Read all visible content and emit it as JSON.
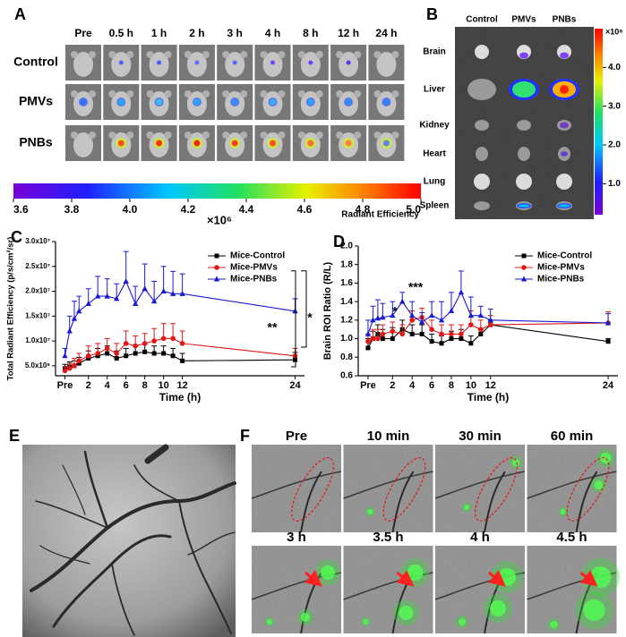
{
  "panel_a": {
    "label": "A",
    "columns": [
      "Pre",
      "0.5 h",
      "1 h",
      "2 h",
      "3 h",
      "4 h",
      "8 h",
      "12 h",
      "24 h"
    ],
    "rows": [
      "Control",
      "PMVs",
      "PNBs"
    ],
    "colorbar": {
      "lim": [
        3.6,
        5.0
      ],
      "ticks": [
        3.6,
        3.8,
        {
          "value": 4,
          "label": "4.0"
        },
        4.2,
        4.4,
        4.6,
        4.8,
        {
          "value": 5,
          "label": "5.0"
        }
      ],
      "multiplier": "×10⁶",
      "title": "Radiant Efficiency"
    }
  },
  "panel_b": {
    "label": "B",
    "columns": [
      "Control",
      "PMVs",
      "PNBs"
    ],
    "rows": [
      "Brain",
      "Liver",
      "Kidney",
      "Heart",
      "Lung",
      "Spleen"
    ],
    "colorbar": {
      "lim": [
        0.2,
        5.0
      ],
      "ticks": [
        {
          "value": 1,
          "label": "1.0"
        },
        {
          "value": 2,
          "label": "2.0"
        },
        {
          "value": 3,
          "label": "3.0"
        },
        {
          "value": 4,
          "label": "4.0"
        }
      ],
      "multiplier": "×10⁸"
    }
  },
  "chart_data": [
    {
      "type": "line",
      "panel_label": "C",
      "xlabel": "Time (h)",
      "ylabel": "Total Radiant Efficiency (p/s/cm²/sr)",
      "x": [
        -0.5,
        0,
        0.5,
        1,
        2,
        3,
        4,
        5,
        6,
        7,
        8,
        9,
        10,
        11,
        12,
        24
      ],
      "xlim": [
        -1.5,
        25
      ],
      "xticks": [
        {
          "value": -0.5,
          "label": "Pre"
        },
        2,
        4,
        6,
        8,
        10,
        12,
        24
      ],
      "ylim": [
        3000000,
        30000000
      ],
      "yticks": [
        {
          "value": 5000000,
          "label": "5.0x10⁶"
        },
        {
          "value": 10000000,
          "label": "1.0x10⁷"
        },
        {
          "value": 15000000,
          "label": "1.5x10⁷"
        },
        {
          "value": 20000000,
          "label": "2.0x10⁷"
        },
        {
          "value": 25000000,
          "label": "2.5x10⁷"
        },
        {
          "value": 30000000,
          "label": "3.0x10⁷"
        }
      ],
      "legend": "upper right",
      "series": [
        {
          "name": "Mice-Control",
          "color": "#000000",
          "marker": "square",
          "values": [
            4500000,
            4800000,
            5000000,
            5500000,
            6500000,
            7000000,
            7500000,
            6500000,
            7000000,
            7500000,
            7800000,
            7500000,
            7500000,
            7000000,
            6000000,
            6200000
          ],
          "errors": [
            800000,
            1000000,
            1000000,
            1200000,
            1500000,
            1500000,
            1500000,
            1500000,
            1500000,
            1500000,
            1500000,
            1500000,
            1500000,
            1500000,
            1500000,
            1500000
          ]
        },
        {
          "name": "Mice-PMVs",
          "color": "#e01818",
          "marker": "circle",
          "values": [
            4000000,
            4500000,
            5000000,
            6000000,
            7000000,
            7500000,
            8500000,
            7500000,
            9500000,
            9000000,
            9500000,
            10000000,
            10500000,
            10500000,
            9500000,
            7000000
          ],
          "errors": [
            800000,
            1000000,
            1500000,
            1500000,
            2000000,
            2000000,
            2000000,
            2000000,
            2500000,
            2000000,
            2000000,
            2500000,
            3000000,
            3000000,
            2500000,
            1500000
          ]
        },
        {
          "name": "Mice-PNBs",
          "color": "#1a1ad0",
          "marker": "triangle",
          "values": [
            7000000,
            12000000,
            14500000,
            16000000,
            17500000,
            19000000,
            19000000,
            18500000,
            22000000,
            17500000,
            20500000,
            18000000,
            20000000,
            19500000,
            19500000,
            16000000
          ],
          "errors": [
            1500000,
            3000000,
            3500000,
            3000000,
            3000000,
            4000000,
            3500000,
            3000000,
            6000000,
            3500000,
            5000000,
            4000000,
            5000000,
            4500000,
            4000000,
            2500000
          ]
        }
      ],
      "annotations": [
        "**",
        "*"
      ]
    },
    {
      "type": "line",
      "panel_label": "D",
      "xlabel": "Time (h)",
      "ylabel": "Brain ROI Ratio (R/L)",
      "x": [
        -0.5,
        0,
        0.5,
        1,
        2,
        3,
        4,
        5,
        6,
        7,
        8,
        9,
        10,
        11,
        12,
        24
      ],
      "xlim": [
        -1.5,
        25
      ],
      "xticks": [
        {
          "value": -0.5,
          "label": "Pre"
        },
        2,
        4,
        6,
        8,
        10,
        12,
        24
      ],
      "ylim": [
        0.6,
        2.0
      ],
      "yticks": [
        0.6,
        0.8,
        {
          "value": 1,
          "label": "1.0"
        },
        1.2,
        1.4,
        1.6,
        1.8,
        {
          "value": 2,
          "label": "2.0"
        }
      ],
      "legend": "upper right",
      "series": [
        {
          "name": "Mice-Control",
          "color": "#000000",
          "marker": "square",
          "values": [
            0.9,
            1.0,
            1.05,
            1.0,
            1.0,
            1.1,
            1.05,
            1.05,
            0.97,
            0.95,
            1.0,
            1.0,
            0.95,
            1.05,
            1.15,
            0.97
          ],
          "errors": [
            0.1,
            0.08,
            0.1,
            0.1,
            0.12,
            0.1,
            0.1,
            0.1,
            0.08,
            0.08,
            0.08,
            0.1,
            0.08,
            0.05,
            0.05,
            0.03
          ]
        },
        {
          "name": "Mice-PMVs",
          "color": "#e01818",
          "marker": "circle",
          "values": [
            0.97,
            1.0,
            1.0,
            1.05,
            1.08,
            1.05,
            1.2,
            1.23,
            1.1,
            1.05,
            1.05,
            1.05,
            1.15,
            1.1,
            1.15,
            1.17
          ],
          "errors": [
            0.08,
            0.1,
            0.1,
            0.1,
            0.1,
            0.1,
            0.1,
            0.1,
            0.1,
            0.1,
            0.1,
            0.1,
            0.15,
            0.1,
            0.1,
            0.12
          ]
        },
        {
          "name": "Mice-PNBs",
          "color": "#1a1ad0",
          "marker": "triangle",
          "values": [
            1.05,
            1.2,
            1.22,
            1.23,
            1.25,
            1.4,
            1.25,
            1.18,
            1.25,
            1.2,
            1.3,
            1.5,
            1.25,
            1.25,
            1.2,
            1.17
          ],
          "errors": [
            0.15,
            0.15,
            0.2,
            0.15,
            0.15,
            0.1,
            0.15,
            0.1,
            0.15,
            0.2,
            0.2,
            0.23,
            0.2,
            0.1,
            0.12,
            0.1
          ]
        }
      ],
      "annotations": [
        "*",
        "***"
      ]
    }
  ],
  "panel_e": {
    "label": "E"
  },
  "panel_f": {
    "label": "F",
    "frames": [
      "Pre",
      "10 min",
      "30 min",
      "60 min",
      "3 h",
      "3.5 h",
      "4 h",
      "4.5 h"
    ]
  }
}
